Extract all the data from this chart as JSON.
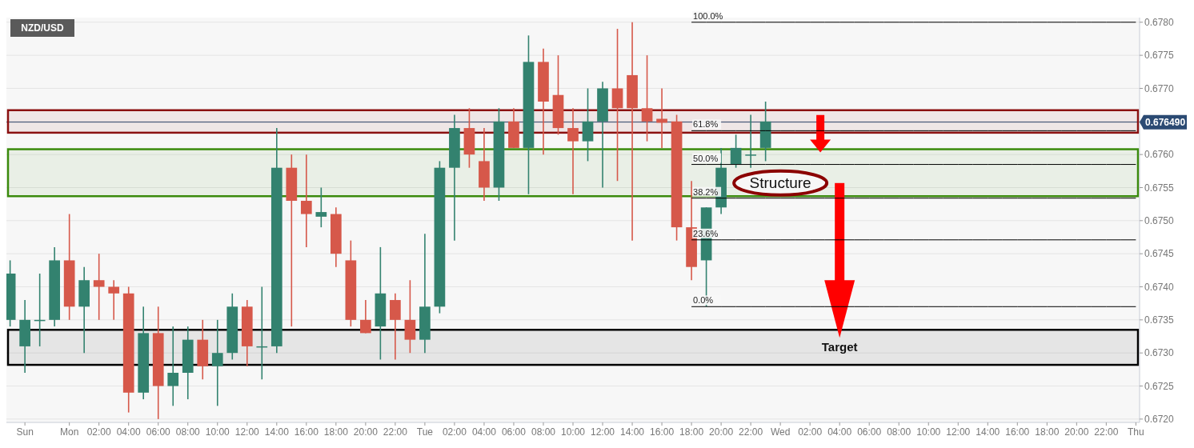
{
  "chart_data": {
    "type": "candlestick",
    "title": "NZD/USD",
    "categories": [
      null,
      "Sun",
      null,
      null,
      "Mon",
      null,
      "02:00",
      null,
      "04:00",
      null,
      "06:00",
      null,
      "08:00",
      null,
      "10:00",
      null,
      "12:00",
      null,
      "14:00",
      null,
      "16:00",
      null,
      "18:00",
      null,
      "20:00",
      null,
      "22:00",
      null,
      "Tue",
      null,
      "02:00",
      null,
      "04:00",
      null,
      "06:00",
      null,
      "08:00",
      null,
      "10:00",
      null,
      "12:00",
      null,
      "14:00",
      null,
      "16:00",
      null,
      "18:00",
      null,
      "20:00",
      null,
      "22:00",
      null,
      "Wed",
      null,
      "02:00",
      null,
      "04:00",
      null,
      "06:00",
      null,
      "08:00",
      null,
      "10:00",
      null,
      "12:00",
      null,
      "14:00",
      null,
      "16:00",
      null,
      "18:00",
      null,
      "20:00",
      null,
      "22:00",
      null,
      "Thu"
    ],
    "ohlc": [
      [
        0.6735,
        0.6744,
        0.6734,
        0.6742
      ],
      [
        0.6731,
        0.6738,
        0.6727,
        0.6735
      ],
      [
        0.6735,
        0.6742,
        0.6731,
        0.6735
      ],
      [
        0.6735,
        0.6746,
        0.6734,
        0.6744
      ],
      [
        0.6744,
        0.6751,
        0.6735,
        0.6737
      ],
      [
        0.6737,
        0.6743,
        0.673,
        0.6741
      ],
      [
        0.6741,
        0.6745,
        0.6735,
        0.674
      ],
      [
        0.674,
        0.6741,
        0.6735,
        0.6739
      ],
      [
        0.6739,
        0.674,
        0.6721,
        0.6724
      ],
      [
        0.6724,
        0.6737,
        0.6723,
        0.6733
      ],
      [
        0.6733,
        0.6737,
        0.672,
        0.6725
      ],
      [
        0.6725,
        0.6734,
        0.6722,
        0.6727
      ],
      [
        0.6727,
        0.6734,
        0.6723,
        0.6732
      ],
      [
        0.6732,
        0.6735,
        0.6726,
        0.6728
      ],
      [
        0.6728,
        0.6735,
        0.6722,
        0.673
      ],
      [
        0.673,
        0.6739,
        0.6729,
        0.6737
      ],
      [
        0.6737,
        0.6738,
        0.6728,
        0.6731
      ],
      [
        0.6731,
        0.674,
        0.6726,
        0.6731
      ],
      [
        0.6731,
        0.6764,
        0.673,
        0.6758
      ],
      [
        0.6758,
        0.676,
        0.6734,
        0.6753
      ],
      [
        0.6753,
        0.676,
        0.6746,
        0.6751
      ],
      [
        0.67506,
        0.6755,
        0.6749,
        0.67513
      ],
      [
        0.6751,
        0.6752,
        0.6743,
        0.6745
      ],
      [
        0.6744,
        0.6747,
        0.6734,
        0.6735
      ],
      [
        0.6735,
        0.6738,
        0.6733,
        0.6733
      ],
      [
        0.6734,
        0.6746,
        0.6729,
        0.6739
      ],
      [
        0.6738,
        0.6739,
        0.6729,
        0.6735
      ],
      [
        0.6735,
        0.6741,
        0.673,
        0.6732
      ],
      [
        0.6732,
        0.6748,
        0.673,
        0.6737
      ],
      [
        0.6737,
        0.6759,
        0.6736,
        0.6758
      ],
      [
        0.6758,
        0.6766,
        0.6747,
        0.6764
      ],
      [
        0.6764,
        0.6767,
        0.6758,
        0.676
      ],
      [
        0.6759,
        0.6764,
        0.6753,
        0.6755
      ],
      [
        0.6755,
        0.6767,
        0.6753,
        0.6765
      ],
      [
        0.6765,
        0.6767,
        0.6761,
        0.6761
      ],
      [
        0.6761,
        0.6778,
        0.6754,
        0.6774
      ],
      [
        0.6774,
        0.6776,
        0.676,
        0.6768
      ],
      [
        0.6769,
        0.6775,
        0.6763,
        0.6764
      ],
      [
        0.6764,
        0.6767,
        0.6754,
        0.6762
      ],
      [
        0.6762,
        0.677,
        0.6759,
        0.6765
      ],
      [
        0.6765,
        0.6771,
        0.6755,
        0.677
      ],
      [
        0.677,
        0.6779,
        0.6756,
        0.6767
      ],
      [
        0.6772,
        0.678,
        0.6747,
        0.6767
      ],
      [
        0.6767,
        0.6775,
        0.6762,
        0.6765
      ],
      [
        0.67654,
        0.677,
        0.6761,
        0.67648
      ],
      [
        0.6765,
        0.6766,
        0.6747,
        0.6749
      ],
      [
        0.6749,
        0.6756,
        0.6741,
        0.6743
      ],
      [
        0.6744,
        0.6752,
        0.6737,
        0.6752
      ],
      [
        0.6752,
        0.6761,
        0.6751,
        0.6758
      ],
      [
        0.67585,
        0.6763,
        0.6758,
        0.6761
      ],
      [
        0.676,
        0.6766,
        0.6758,
        0.676
      ],
      [
        0.6761,
        0.6768,
        0.6759,
        0.6765
      ],
      null,
      null,
      null,
      null,
      null,
      null,
      null,
      null,
      null,
      null,
      null,
      null,
      null,
      null,
      null,
      null,
      null,
      null,
      null,
      null,
      null,
      null,
      null,
      null,
      null
    ],
    "colors": [
      "#33826f",
      "#33826f",
      "#33826f",
      "#33826f",
      "#d6584a",
      "#33826f",
      "#d6584a",
      "#d6584a",
      "#d6584a",
      "#33826f",
      "#d6584a",
      "#33826f",
      "#33826f",
      "#d6584a",
      "#33826f",
      "#33826f",
      "#d6584a",
      "#33826f",
      "#33826f",
      "#d6584a",
      "#d6584a",
      "#33826f",
      "#d6584a",
      "#d6584a",
      "#d6584a",
      "#33826f",
      "#d6584a",
      "#d6584a",
      "#33826f",
      "#33826f",
      "#33826f",
      "#d6584a",
      "#d6584a",
      "#33826f",
      "#d6584a",
      "#33826f",
      "#d6584a",
      "#d6584a",
      "#d6584a",
      "#33826f",
      "#33826f",
      "#d6584a",
      "#d6584a",
      "#d6584a",
      "#d6584a",
      "#d6584a",
      "#d6584a",
      "#33826f",
      "#33826f",
      "#33826f",
      "#33826f",
      "#33826f",
      null,
      null,
      null,
      null,
      null,
      null,
      null,
      null,
      null,
      null,
      null,
      null,
      null,
      null,
      null,
      null,
      null,
      null,
      null,
      null,
      null,
      null,
      null,
      null,
      null
    ],
    "series": [
      {
        "type": "line",
        "name": "100.0%",
        "color": "#000000",
        "values": [
          null,
          null,
          null,
          null,
          null,
          null,
          null,
          null,
          null,
          null,
          null,
          null,
          null,
          null,
          null,
          null,
          null,
          null,
          null,
          null,
          null,
          null,
          null,
          null,
          null,
          null,
          null,
          null,
          null,
          null,
          null,
          null,
          null,
          null,
          null,
          null,
          null,
          null,
          null,
          null,
          null,
          null,
          null,
          null,
          null,
          null,
          0.678,
          0.678,
          0.678,
          0.678,
          0.678,
          0.678,
          0.678,
          0.678,
          0.678,
          0.678,
          0.678,
          0.678,
          0.678,
          0.678,
          0.678,
          0.678,
          0.678,
          0.678,
          0.678,
          0.678,
          0.678,
          0.678,
          0.678,
          0.678,
          0.678,
          0.678,
          0.678,
          0.678,
          0.678,
          0.678,
          0.678
        ]
      },
      {
        "type": "line",
        "name": "61.8%",
        "color": "#000000",
        "values": [
          null,
          null,
          null,
          null,
          null,
          null,
          null,
          null,
          null,
          null,
          null,
          null,
          null,
          null,
          null,
          null,
          null,
          null,
          null,
          null,
          null,
          null,
          null,
          null,
          null,
          null,
          null,
          null,
          null,
          null,
          null,
          null,
          null,
          null,
          null,
          null,
          null,
          null,
          null,
          null,
          null,
          null,
          null,
          null,
          null,
          null,
          0.67636,
          0.67636,
          0.67636,
          0.67636,
          0.67636,
          0.67636,
          0.67636,
          0.67636,
          0.67636,
          0.67636,
          0.67636,
          0.67636,
          0.67636,
          0.67636,
          0.67636,
          0.67636,
          0.67636,
          0.67636,
          0.67636,
          0.67636,
          0.67636,
          0.67636,
          0.67636,
          0.67636,
          0.67636,
          0.67636,
          0.67636,
          0.67636,
          0.67636,
          0.67636,
          0.67636
        ]
      },
      {
        "type": "line",
        "name": "50.0%",
        "color": "#000000",
        "values": [
          null,
          null,
          null,
          null,
          null,
          null,
          null,
          null,
          null,
          null,
          null,
          null,
          null,
          null,
          null,
          null,
          null,
          null,
          null,
          null,
          null,
          null,
          null,
          null,
          null,
          null,
          null,
          null,
          null,
          null,
          null,
          null,
          null,
          null,
          null,
          null,
          null,
          null,
          null,
          null,
          null,
          null,
          null,
          null,
          null,
          null,
          0.67585,
          0.67585,
          0.67585,
          0.67585,
          0.67585,
          0.67585,
          0.67585,
          0.67585,
          0.67585,
          0.67585,
          0.67585,
          0.67585,
          0.67585,
          0.67585,
          0.67585,
          0.67585,
          0.67585,
          0.67585,
          0.67585,
          0.67585,
          0.67585,
          0.67585,
          0.67585,
          0.67585,
          0.67585,
          0.67585,
          0.67585,
          0.67585,
          0.67585,
          0.67585,
          0.67585
        ]
      },
      {
        "type": "line",
        "name": "38.2%",
        "color": "#000000",
        "values": [
          null,
          null,
          null,
          null,
          null,
          null,
          null,
          null,
          null,
          null,
          null,
          null,
          null,
          null,
          null,
          null,
          null,
          null,
          null,
          null,
          null,
          null,
          null,
          null,
          null,
          null,
          null,
          null,
          null,
          null,
          null,
          null,
          null,
          null,
          null,
          null,
          null,
          null,
          null,
          null,
          null,
          null,
          null,
          null,
          null,
          null,
          0.67534,
          0.67534,
          0.67534,
          0.67534,
          0.67534,
          0.67534,
          0.67534,
          0.67534,
          0.67534,
          0.67534,
          0.67534,
          0.67534,
          0.67534,
          0.67534,
          0.67534,
          0.67534,
          0.67534,
          0.67534,
          0.67534,
          0.67534,
          0.67534,
          0.67534,
          0.67534,
          0.67534,
          0.67534,
          0.67534,
          0.67534,
          0.67534,
          0.67534,
          0.67534,
          0.67534
        ]
      },
      {
        "type": "line",
        "name": "23.6%",
        "color": "#000000",
        "values": [
          null,
          null,
          null,
          null,
          null,
          null,
          null,
          null,
          null,
          null,
          null,
          null,
          null,
          null,
          null,
          null,
          null,
          null,
          null,
          null,
          null,
          null,
          null,
          null,
          null,
          null,
          null,
          null,
          null,
          null,
          null,
          null,
          null,
          null,
          null,
          null,
          null,
          null,
          null,
          null,
          null,
          null,
          null,
          null,
          null,
          null,
          0.67471,
          0.67471,
          0.67471,
          0.67471,
          0.67471,
          0.67471,
          0.67471,
          0.67471,
          0.67471,
          0.67471,
          0.67471,
          0.67471,
          0.67471,
          0.67471,
          0.67471,
          0.67471,
          0.67471,
          0.67471,
          0.67471,
          0.67471,
          0.67471,
          0.67471,
          0.67471,
          0.67471,
          0.67471,
          0.67471,
          0.67471,
          0.67471,
          0.67471,
          0.67471,
          0.67471
        ]
      },
      {
        "type": "line",
        "name": "0.0%",
        "color": "#000000",
        "values": [
          null,
          null,
          null,
          null,
          null,
          null,
          null,
          null,
          null,
          null,
          null,
          null,
          null,
          null,
          null,
          null,
          null,
          null,
          null,
          null,
          null,
          null,
          null,
          null,
          null,
          null,
          null,
          null,
          null,
          null,
          null,
          null,
          null,
          null,
          null,
          null,
          null,
          null,
          null,
          null,
          null,
          null,
          null,
          null,
          null,
          null,
          0.6737,
          0.6737,
          0.6737,
          0.6737,
          0.6737,
          0.6737,
          0.6737,
          0.6737,
          0.6737,
          0.6737,
          0.6737,
          0.6737,
          0.6737,
          0.6737,
          0.6737,
          0.6737,
          0.6737,
          0.6737,
          0.6737,
          0.6737,
          0.6737,
          0.6737,
          0.6737,
          0.6737,
          0.6737,
          0.6737,
          0.6737,
          0.6737,
          0.6737,
          0.6737,
          0.6737
        ]
      }
    ],
    "ylim": [
      0.67195,
      0.67807
    ],
    "yticks": [
      {
        "value": 0.672,
        "label": "0.6720"
      },
      {
        "value": 0.6725,
        "label": "0.6725"
      },
      {
        "value": 0.673,
        "label": "0.6730"
      },
      {
        "value": 0.6735,
        "label": "0.6735"
      },
      {
        "value": 0.674,
        "label": "0.6740"
      },
      {
        "value": 0.6745,
        "label": "0.6745"
      },
      {
        "value": 0.675,
        "label": "0.6750"
      },
      {
        "value": 0.6755,
        "label": "0.6755"
      },
      {
        "value": 0.676,
        "label": "0.6760"
      },
      {
        "value": 0.6765,
        "label": null
      },
      {
        "value": 0.677,
        "label": "0.6770"
      },
      {
        "value": 0.6775,
        "label": "0.6775"
      },
      {
        "value": 0.678,
        "label": "0.6780"
      }
    ],
    "grid": "y",
    "ref_lines": [
      {
        "axis": "y",
        "value": 0.67649,
        "label": "0.676490",
        "color": "#2b4a73"
      }
    ],
    "bands": [
      {
        "axis": "y",
        "from": 0.67537,
        "to": 0.67608,
        "color": "#3a8a0c"
      },
      {
        "axis": "y",
        "from": 0.67633,
        "to": 0.67667,
        "color": "#8b1010"
      },
      {
        "axis": "y",
        "from": 0.67282,
        "to": 0.67335,
        "color": "#000000"
      }
    ],
    "annotations": [
      "Structure",
      "Target"
    ]
  }
}
